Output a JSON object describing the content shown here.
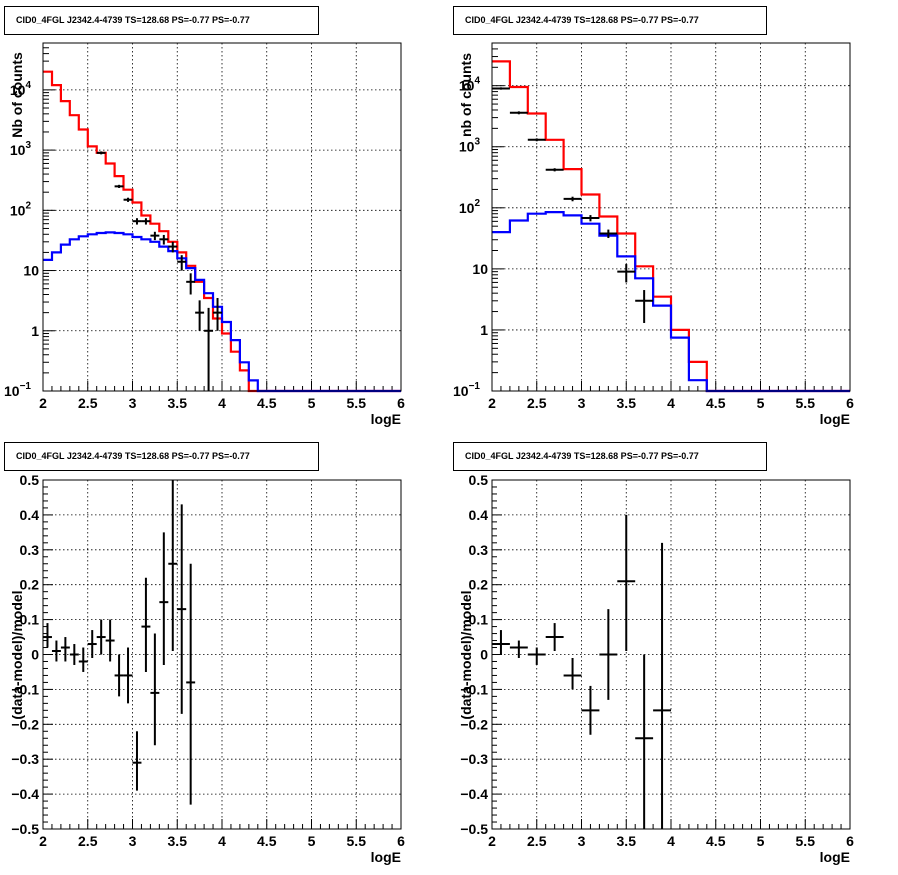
{
  "chart_data": [
    {
      "id": "top-left",
      "type": "line",
      "title": "CID0_4FGL J2342.4-4739 TS=128.68 PS=-0.77 PS=-0.77",
      "xlabel": "logE",
      "ylabel": "Nb of counts",
      "xlim": [
        2,
        6
      ],
      "ylim": [
        0.1,
        60000
      ],
      "yscale": "log",
      "grid": true,
      "xticks": [
        "2",
        "2.5",
        "3",
        "3.5",
        "4",
        "4.5",
        "5",
        "5.5",
        "6"
      ],
      "yticks": [
        {
          "value": 0.1,
          "label": "10",
          "sup": "−1"
        },
        {
          "value": 1,
          "label": "1",
          "sup": ""
        },
        {
          "value": 10,
          "label": "10",
          "sup": ""
        },
        {
          "value": 100,
          "label": "10",
          "sup": "2"
        },
        {
          "value": 1000,
          "label": "10",
          "sup": "3"
        },
        {
          "value": 10000,
          "label": "10",
          "sup": "4"
        }
      ],
      "bin_edges": [
        2.0,
        2.1,
        2.2,
        2.3,
        2.4,
        2.5,
        2.6,
        2.7,
        2.8,
        2.9,
        3.0,
        3.1,
        3.2,
        3.3,
        3.4,
        3.5,
        3.6,
        3.7,
        3.8,
        3.9,
        4.0,
        4.1,
        4.2,
        4.3,
        4.4,
        4.5,
        4.6,
        4.7,
        4.8,
        4.9,
        5.0,
        5.1,
        5.2,
        5.3,
        5.4,
        5.5,
        5.6,
        5.7,
        5.8,
        5.9,
        6.0
      ],
      "series": [
        {
          "role": "total-model",
          "color": "#ff0000",
          "values": [
            20000,
            12000,
            6500,
            3800,
            2200,
            1150,
            900,
            600,
            370,
            220,
            135,
            82,
            60,
            45,
            30,
            20,
            12,
            6.5,
            3.5,
            1.6,
            0.9,
            0.45,
            0.22,
            0.1,
            0.1,
            0.1,
            0.1,
            0.1,
            0.1,
            0.1,
            0.1,
            0.1,
            0.1,
            0.1,
            0.1,
            0.1,
            0.1,
            0.1,
            0.1,
            0.1
          ]
        },
        {
          "role": "source-model",
          "color": "#0000ff",
          "values": [
            15,
            20,
            27,
            33,
            37,
            40,
            42,
            43,
            42,
            40,
            36,
            33,
            30,
            25,
            21,
            16,
            11,
            7,
            4.2,
            2.5,
            1.4,
            0.7,
            0.3,
            0.15,
            0.1,
            0.1,
            0.1,
            0.1,
            0.1,
            0.1,
            0.1,
            0.1,
            0.1,
            0.1,
            0.1,
            0.1,
            0.1,
            0.1,
            0.1,
            0.1
          ]
        }
      ],
      "points": [
        {
          "x": 2.65,
          "y": 900,
          "lo": 850,
          "hi": 950
        },
        {
          "x": 2.85,
          "y": 250,
          "lo": 235,
          "hi": 265
        },
        {
          "x": 2.95,
          "y": 150,
          "lo": 138,
          "hi": 162
        },
        {
          "x": 3.05,
          "y": 66,
          "lo": 58,
          "hi": 74
        },
        {
          "x": 3.15,
          "y": 66,
          "lo": 58,
          "hi": 74
        },
        {
          "x": 3.25,
          "y": 38,
          "lo": 32,
          "hi": 44
        },
        {
          "x": 3.35,
          "y": 33,
          "lo": 27,
          "hi": 39
        },
        {
          "x": 3.45,
          "y": 25,
          "lo": 20,
          "hi": 30
        },
        {
          "x": 3.55,
          "y": 14,
          "lo": 10,
          "hi": 18
        },
        {
          "x": 3.65,
          "y": 6.5,
          "lo": 4,
          "hi": 9
        },
        {
          "x": 3.75,
          "y": 2,
          "lo": 1.0,
          "hi": 3.2
        },
        {
          "x": 3.85,
          "y": 1.0,
          "lo": 0.1,
          "hi": 2.4
        },
        {
          "x": 3.95,
          "y": 2,
          "lo": 1.0,
          "hi": 3.5
        }
      ]
    },
    {
      "id": "top-right",
      "type": "line",
      "title": "CID0_4FGL J2342.4-4739 TS=128.68 PS=-0.77 PS=-0.77",
      "xlabel": "logE",
      "ylabel": "nb of counts",
      "xlim": [
        2,
        6
      ],
      "ylim": [
        0.1,
        50000
      ],
      "yscale": "log",
      "grid": true,
      "xticks": [
        "2",
        "2.5",
        "3",
        "3.5",
        "4",
        "4.5",
        "5",
        "5.5",
        "6"
      ],
      "yticks": [
        {
          "value": 0.1,
          "label": "10",
          "sup": "−1"
        },
        {
          "value": 1,
          "label": "1",
          "sup": ""
        },
        {
          "value": 10,
          "label": "10",
          "sup": ""
        },
        {
          "value": 100,
          "label": "10",
          "sup": "2"
        },
        {
          "value": 1000,
          "label": "10",
          "sup": "3"
        },
        {
          "value": 10000,
          "label": "10",
          "sup": "4"
        }
      ],
      "bin_edges": [
        2.0,
        2.2,
        2.4,
        2.6,
        2.8,
        3.0,
        3.2,
        3.4,
        3.6,
        3.8,
        4.0,
        4.2,
        4.4,
        4.6,
        4.8,
        5.0,
        5.2,
        5.4,
        5.6,
        5.8,
        6.0
      ],
      "series": [
        {
          "role": "total-model",
          "color": "#ff0000",
          "values": [
            25000,
            9500,
            3500,
            1300,
            430,
            165,
            72,
            38,
            11,
            3.5,
            1.0,
            0.3,
            0.1,
            0.1,
            0.1,
            0.1,
            0.1,
            0.1,
            0.1,
            0.1
          ]
        },
        {
          "role": "source-model",
          "color": "#0000ff",
          "values": [
            40,
            62,
            80,
            85,
            75,
            55,
            35,
            16,
            7,
            2.5,
            0.75,
            0.15,
            0.1,
            0.1,
            0.1,
            0.1,
            0.1,
            0.1,
            0.1,
            0.1
          ]
        }
      ],
      "points": [
        {
          "x": 2.1,
          "y": 9000,
          "lo": 8600,
          "hi": 9400
        },
        {
          "x": 2.3,
          "y": 3600,
          "lo": 3400,
          "hi": 3800
        },
        {
          "x": 2.5,
          "y": 1300,
          "lo": 1230,
          "hi": 1370
        },
        {
          "x": 2.7,
          "y": 420,
          "lo": 395,
          "hi": 445
        },
        {
          "x": 2.9,
          "y": 140,
          "lo": 128,
          "hi": 152
        },
        {
          "x": 3.1,
          "y": 68,
          "lo": 60,
          "hi": 76
        },
        {
          "x": 3.3,
          "y": 38,
          "lo": 32,
          "hi": 44
        },
        {
          "x": 3.5,
          "y": 9,
          "lo": 6,
          "hi": 12
        },
        {
          "x": 3.7,
          "y": 3,
          "lo": 1.3,
          "hi": 4.5
        }
      ]
    },
    {
      "id": "bottom-left",
      "type": "scatter",
      "title": "CID0_4FGL J2342.4-4739 TS=128.68 PS=-0.77 PS=-0.77",
      "xlabel": "logE",
      "ylabel": "(data-model)/model",
      "xlim": [
        2,
        6
      ],
      "ylim": [
        -0.5,
        0.5
      ],
      "grid": true,
      "xticks": [
        "2",
        "2.5",
        "3",
        "3.5",
        "4",
        "4.5",
        "5",
        "5.5",
        "6"
      ],
      "yticks": [
        "−0.5",
        "−0.4",
        "−0.3",
        "−0.2",
        "−0.1",
        "0",
        "0.1",
        "0.2",
        "0.3",
        "0.4",
        "0.5"
      ],
      "ytick_values": [
        -0.5,
        -0.4,
        -0.3,
        -0.2,
        -0.1,
        0,
        0.1,
        0.2,
        0.3,
        0.4,
        0.5
      ],
      "bin_half_width": 0.05,
      "points": [
        {
          "x": 2.05,
          "y": 0.05,
          "lo": 0.02,
          "hi": 0.09
        },
        {
          "x": 2.15,
          "y": 0.01,
          "lo": -0.02,
          "hi": 0.04
        },
        {
          "x": 2.25,
          "y": 0.02,
          "lo": -0.02,
          "hi": 0.05
        },
        {
          "x": 2.35,
          "y": 0.0,
          "lo": -0.03,
          "hi": 0.03
        },
        {
          "x": 2.45,
          "y": -0.02,
          "lo": -0.05,
          "hi": 0.02
        },
        {
          "x": 2.55,
          "y": 0.03,
          "lo": -0.01,
          "hi": 0.07
        },
        {
          "x": 2.65,
          "y": 0.05,
          "lo": 0.0,
          "hi": 0.1
        },
        {
          "x": 2.75,
          "y": 0.04,
          "lo": -0.02,
          "hi": 0.1
        },
        {
          "x": 2.85,
          "y": -0.06,
          "lo": -0.12,
          "hi": 0.0
        },
        {
          "x": 2.95,
          "y": -0.06,
          "lo": -0.14,
          "hi": 0.02
        },
        {
          "x": 3.05,
          "y": -0.31,
          "lo": -0.39,
          "hi": -0.22
        },
        {
          "x": 3.15,
          "y": 0.08,
          "lo": -0.05,
          "hi": 0.22
        },
        {
          "x": 3.25,
          "y": -0.11,
          "lo": -0.26,
          "hi": 0.06
        },
        {
          "x": 3.35,
          "y": 0.15,
          "lo": -0.03,
          "hi": 0.35
        },
        {
          "x": 3.45,
          "y": 0.26,
          "lo": 0.01,
          "hi": 0.5
        },
        {
          "x": 3.55,
          "y": 0.13,
          "lo": -0.17,
          "hi": 0.43
        },
        {
          "x": 3.65,
          "y": -0.08,
          "lo": -0.43,
          "hi": 0.26
        }
      ]
    },
    {
      "id": "bottom-right",
      "type": "scatter",
      "title": "CID0_4FGL J2342.4-4739 TS=128.68 PS=-0.77 PS=-0.77",
      "xlabel": "logE",
      "ylabel": "(data-model)/model",
      "xlim": [
        2,
        6
      ],
      "ylim": [
        -0.5,
        0.5
      ],
      "grid": true,
      "xticks": [
        "2",
        "2.5",
        "3",
        "3.5",
        "4",
        "4.5",
        "5",
        "5.5",
        "6"
      ],
      "yticks": [
        "−0.5",
        "−0.4",
        "−0.3",
        "−0.2",
        "−0.1",
        "0",
        "0.1",
        "0.2",
        "0.3",
        "0.4",
        "0.5"
      ],
      "ytick_values": [
        -0.5,
        -0.4,
        -0.3,
        -0.2,
        -0.1,
        0,
        0.1,
        0.2,
        0.3,
        0.4,
        0.5
      ],
      "bin_half_width": 0.1,
      "points": [
        {
          "x": 2.1,
          "y": 0.03,
          "lo": 0.0,
          "hi": 0.07
        },
        {
          "x": 2.3,
          "y": 0.02,
          "lo": -0.01,
          "hi": 0.04
        },
        {
          "x": 2.5,
          "y": 0.0,
          "lo": -0.03,
          "hi": 0.02
        },
        {
          "x": 2.7,
          "y": 0.05,
          "lo": 0.01,
          "hi": 0.09
        },
        {
          "x": 2.9,
          "y": -0.06,
          "lo": -0.1,
          "hi": -0.01
        },
        {
          "x": 3.1,
          "y": -0.16,
          "lo": -0.23,
          "hi": -0.09
        },
        {
          "x": 3.3,
          "y": -0.0,
          "lo": -0.13,
          "hi": 0.13
        },
        {
          "x": 3.5,
          "y": 0.21,
          "lo": 0.01,
          "hi": 0.4
        },
        {
          "x": 3.7,
          "y": -0.24,
          "lo": -0.5,
          "hi": 0.0
        },
        {
          "x": 3.9,
          "y": -0.16,
          "lo": -0.5,
          "hi": 0.32
        }
      ]
    }
  ]
}
